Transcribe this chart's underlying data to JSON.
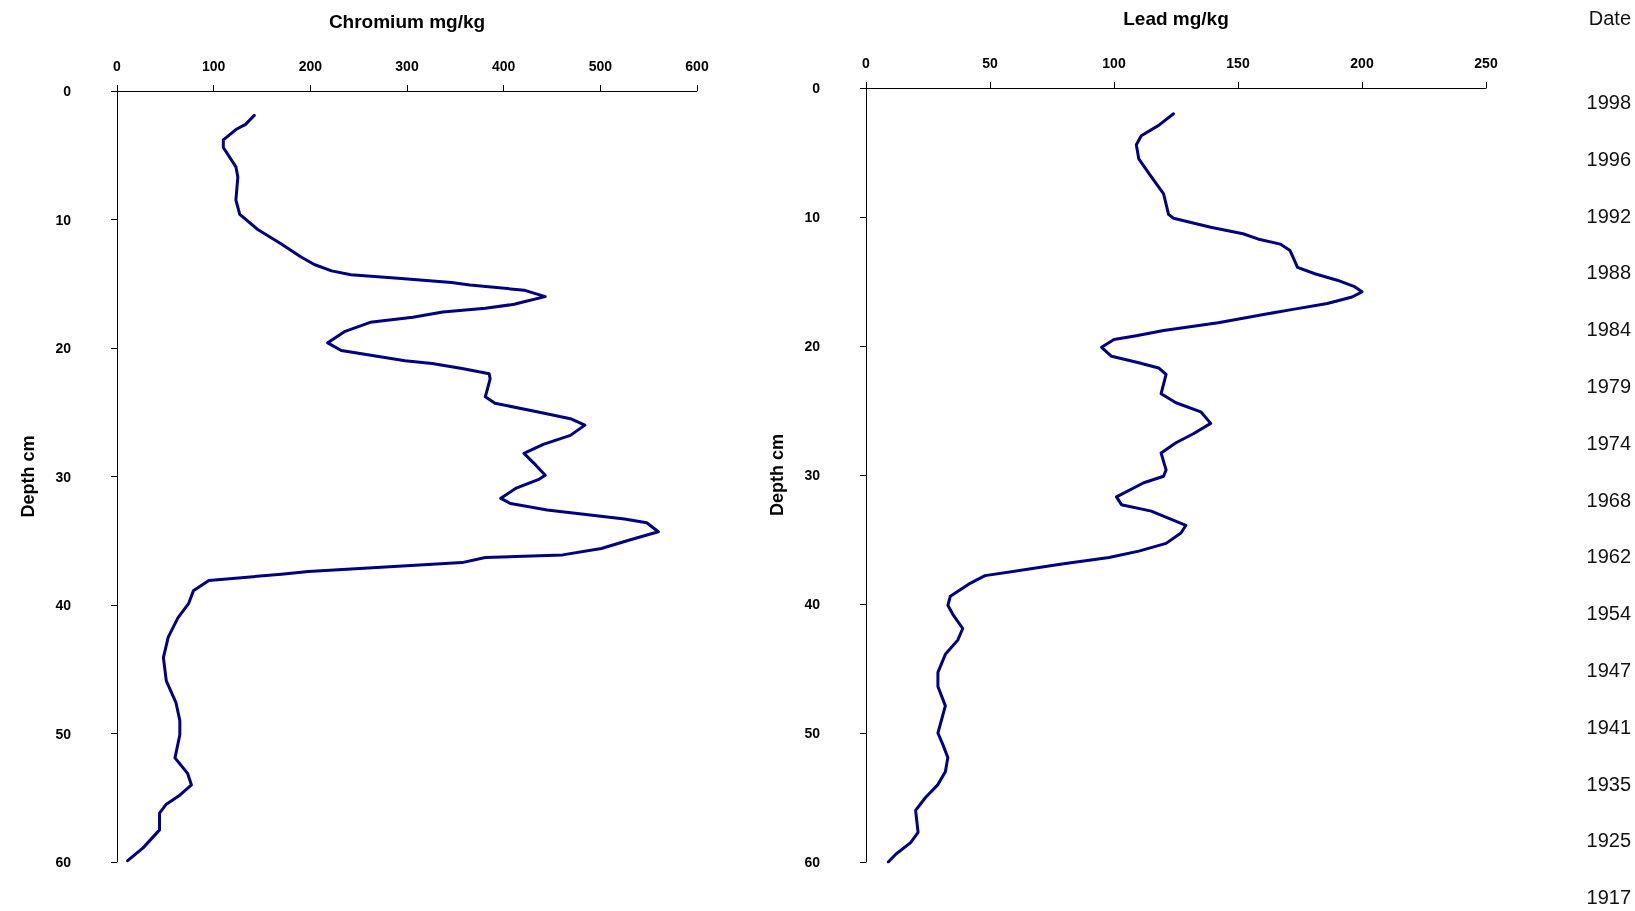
{
  "chart_data": [
    {
      "type": "line",
      "xlabel": "Chromium mg/kg",
      "ylabel": "Depth cm",
      "xlim": [
        0,
        600
      ],
      "xticks": [
        0,
        100,
        200,
        300,
        400,
        500,
        600
      ],
      "ylim": [
        60,
        0
      ],
      "yticks": [
        0,
        10,
        20,
        30,
        40,
        50,
        60
      ],
      "marker": "none",
      "line_style": "solid",
      "series": [
        {
          "color": "#000080",
          "x": [
            142,
            133,
            123,
            110,
            110,
            123,
            125,
            123,
            127,
            146,
            170,
            190,
            204,
            222,
            242,
            294,
            346,
            365,
            421,
            443,
            421,
            411,
            381,
            337,
            306,
            262,
            236,
            218,
            232,
            298,
            326,
            357,
            385,
            386,
            381,
            391,
            437,
            469,
            484,
            469,
            441,
            421,
            433,
            443,
            437,
            413,
            397,
            407,
            445,
            525,
            548,
            560,
            532,
            501,
            461,
            381,
            357,
            198,
            170,
            95,
            79,
            74,
            63,
            53,
            48,
            51,
            61,
            65,
            65,
            60,
            73,
            77,
            65,
            51,
            44,
            44,
            27,
            11
          ],
          "values": [
            1.9,
            2.6,
            3.0,
            3.8,
            4.4,
            5.9,
            6.7,
            8.5,
            9.6,
            10.8,
            11.9,
            12.9,
            13.5,
            14.0,
            14.3,
            14.6,
            14.9,
            15.1,
            15.5,
            16.0,
            16.4,
            16.6,
            16.9,
            17.2,
            17.6,
            18.0,
            18.7,
            19.6,
            20.2,
            21.0,
            21.2,
            21.6,
            22.0,
            22.4,
            23.8,
            24.3,
            25.0,
            25.5,
            26.0,
            26.8,
            27.5,
            28.2,
            29.1,
            29.9,
            30.2,
            30.9,
            31.7,
            32.1,
            32.6,
            33.3,
            33.6,
            34.3,
            34.9,
            35.6,
            36.1,
            36.3,
            36.7,
            37.4,
            37.6,
            38.1,
            38.9,
            39.9,
            41.0,
            42.5,
            44.1,
            45.9,
            47.6,
            49.0,
            50.1,
            51.9,
            53.1,
            54.0,
            54.8,
            55.5,
            56.2,
            57.5,
            58.9,
            59.9
          ]
        }
      ]
    },
    {
      "type": "line",
      "xlabel": "Lead mg/kg",
      "ylabel": "Depth cm",
      "annotations": [
        "Date",
        "1998",
        "1996",
        "1992",
        "1988",
        "1984",
        "1979",
        "1974",
        "1968",
        "1962",
        "1954",
        "1947",
        "1941",
        "1935",
        "1925",
        "1917"
      ],
      "xlim": [
        0,
        250
      ],
      "xticks": [
        0,
        50,
        100,
        150,
        200,
        250
      ],
      "ylim": [
        60,
        0
      ],
      "yticks": [
        0,
        10,
        20,
        30,
        40,
        50,
        60
      ],
      "marker": "none",
      "line_style": "solid",
      "series": [
        {
          "color": "#000080",
          "x": [
            124,
            118,
            111,
            109,
            110,
            114,
            120,
            121,
            122,
            124,
            139,
            152,
            158,
            167,
            171,
            174,
            181,
            190,
            197,
            200,
            196,
            186,
            171,
            162,
            142,
            120,
            109,
            100,
            95,
            99,
            110,
            118,
            121,
            119,
            125,
            135,
            139,
            132,
            125,
            119,
            121,
            120,
            112,
            101,
            103,
            115,
            129,
            127,
            121,
            110,
            98,
            79,
            48,
            42,
            34,
            33,
            35,
            39,
            37,
            32,
            29,
            29,
            32,
            29,
            31,
            33,
            32,
            29,
            24,
            20,
            21,
            18,
            12,
            9
          ],
          "values": [
            2.0,
            2.9,
            3.7,
            4.4,
            5.5,
            6.6,
            8.2,
            9.0,
            9.8,
            10.1,
            10.8,
            11.3,
            11.7,
            12.1,
            12.6,
            13.9,
            14.4,
            14.9,
            15.4,
            15.8,
            16.2,
            16.7,
            17.2,
            17.5,
            18.2,
            18.8,
            19.2,
            19.5,
            20.1,
            20.8,
            21.3,
            21.7,
            22.2,
            23.7,
            24.4,
            25.1,
            26.0,
            26.8,
            27.5,
            28.3,
            29.6,
            30.1,
            30.6,
            31.7,
            32.3,
            32.8,
            33.9,
            34.5,
            35.3,
            35.9,
            36.4,
            36.9,
            37.8,
            38.4,
            39.4,
            40.1,
            40.8,
            41.9,
            42.8,
            43.9,
            45.3,
            46.4,
            47.9,
            50.0,
            50.9,
            51.9,
            53.0,
            54.0,
            55.0,
            56.0,
            57.7,
            58.5,
            59.4,
            60.0
          ]
        }
      ]
    }
  ]
}
